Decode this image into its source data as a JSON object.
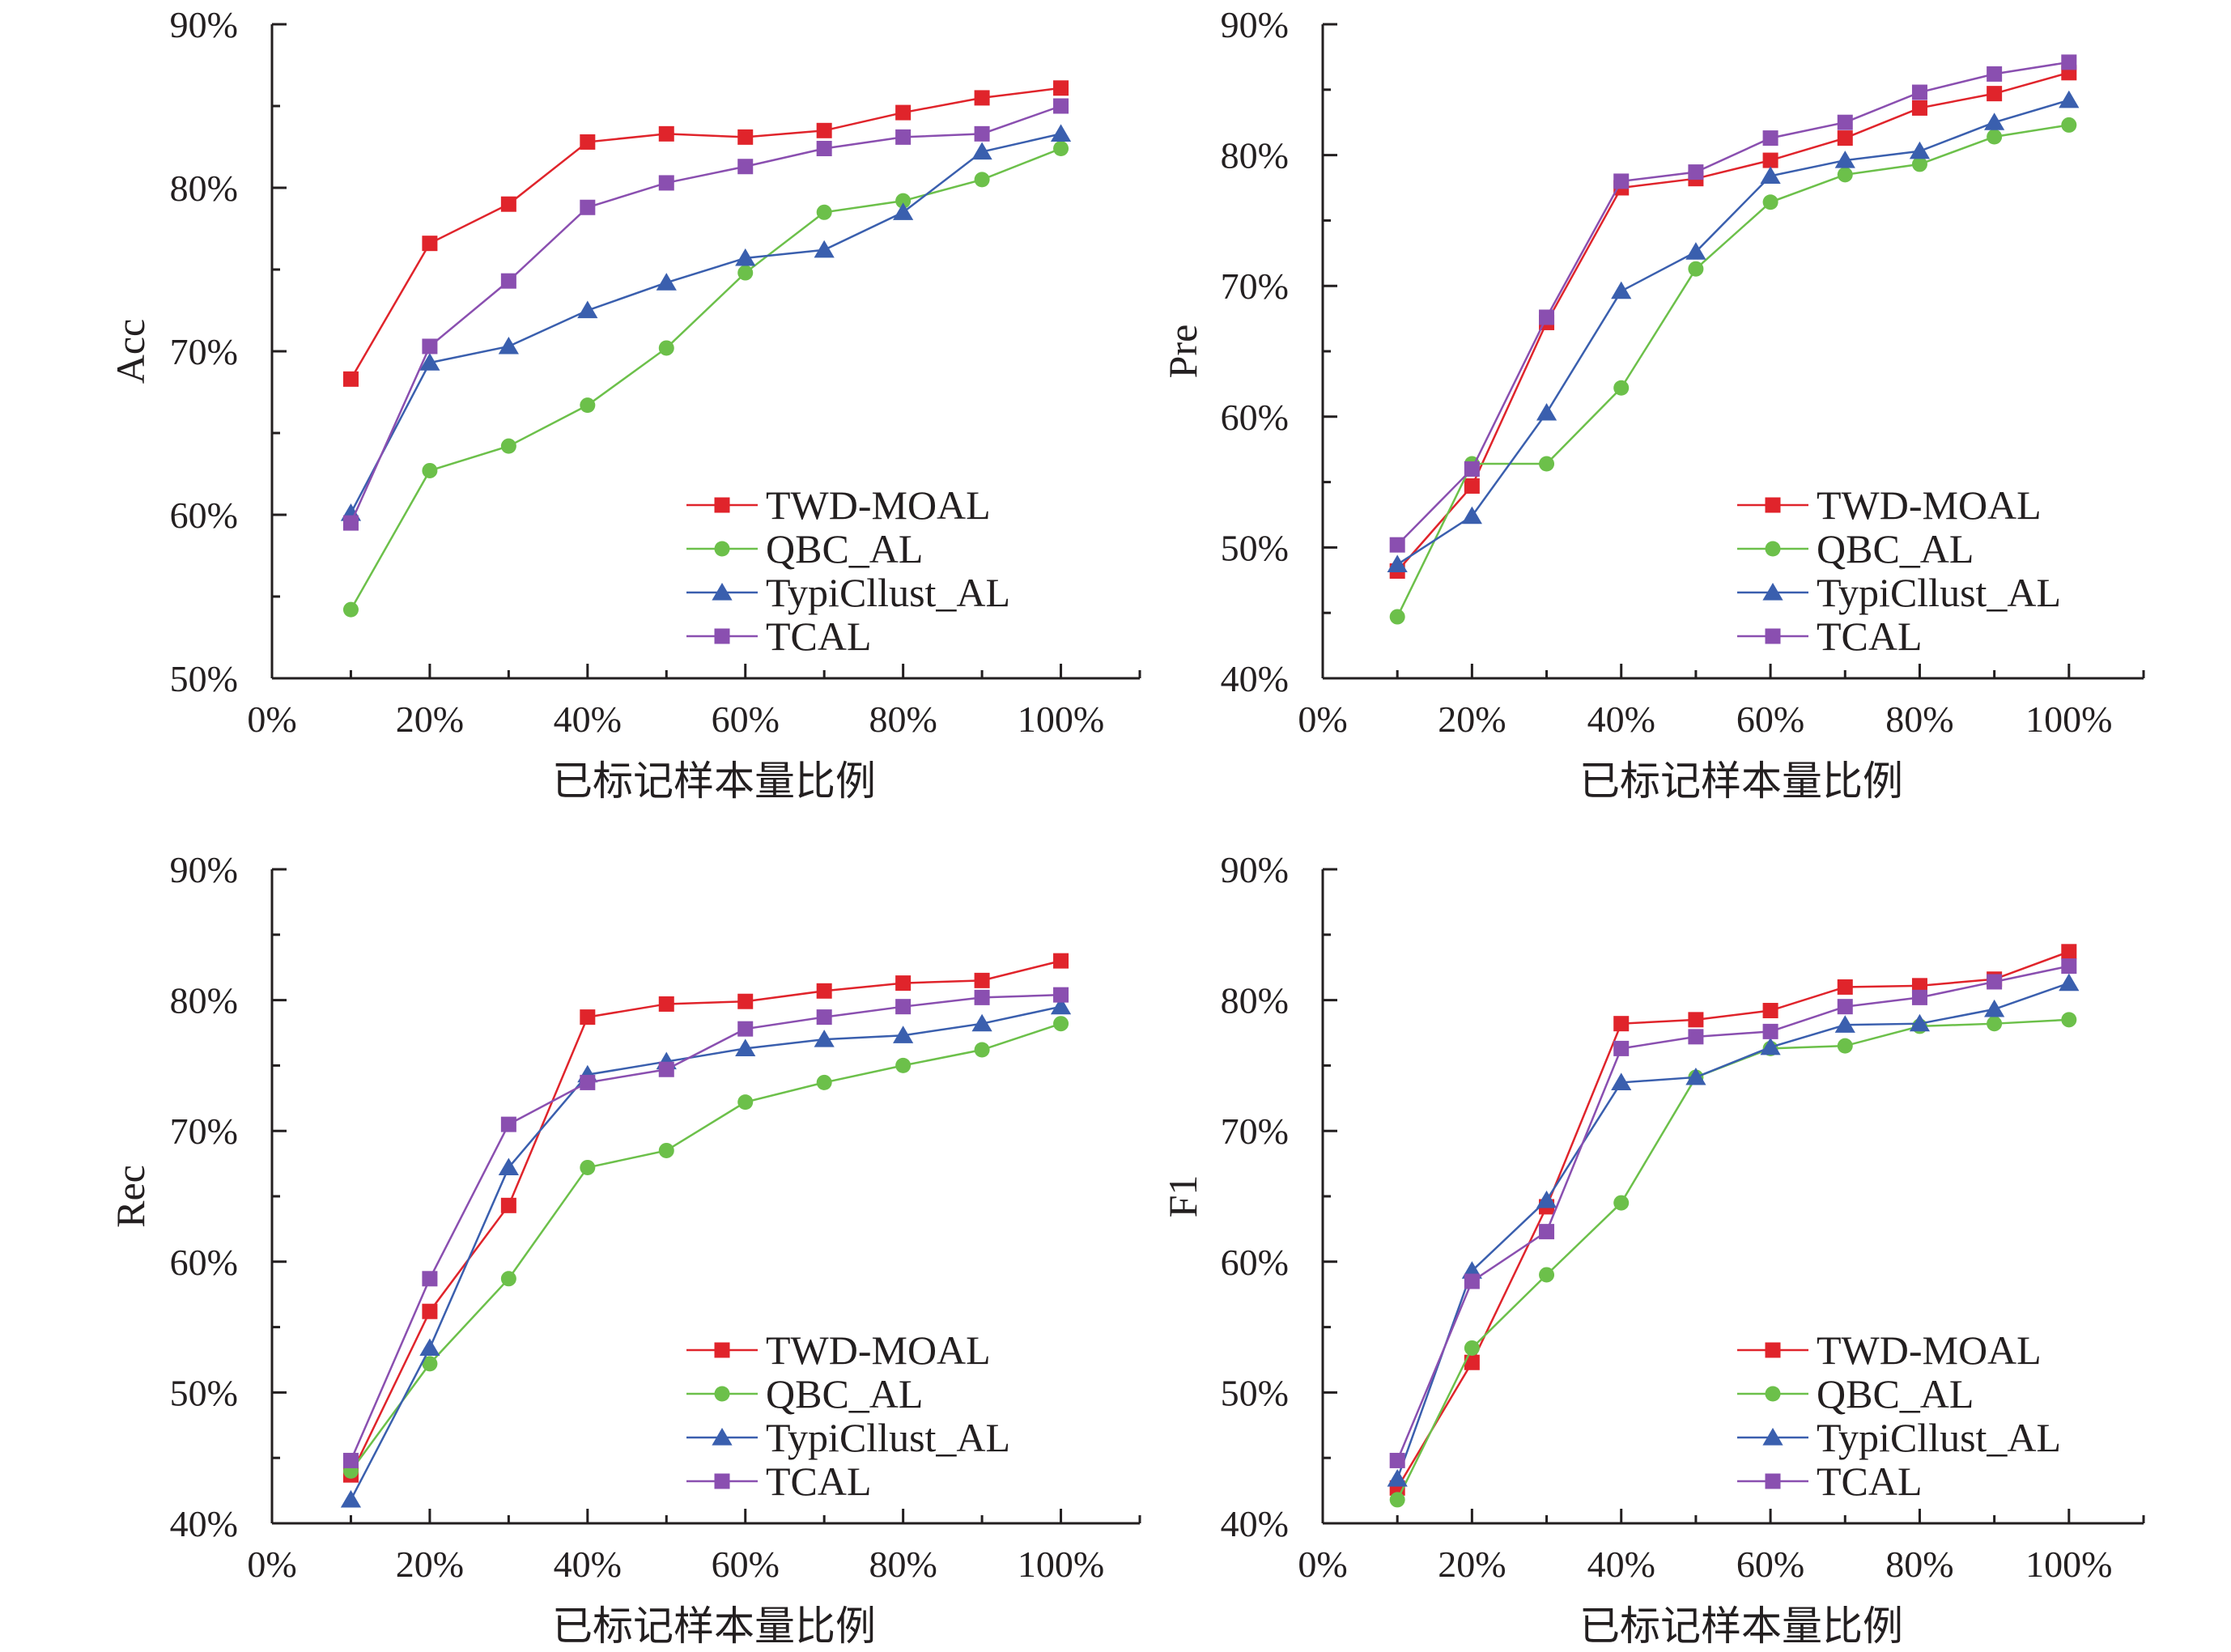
{
  "chart_data": [
    {
      "type": "line",
      "xlabel": "已标记样本量比例",
      "ylabel": "Acc",
      "x": [
        10,
        20,
        30,
        40,
        50,
        60,
        70,
        80,
        90,
        100
      ],
      "xlim": [
        0,
        110
      ],
      "ylim": [
        50,
        90
      ],
      "xticks": [
        "0%",
        "20%",
        "40%",
        "60%",
        "80%",
        "100%"
      ],
      "yticks": [
        "50%",
        "60%",
        "70%",
        "80%",
        "90%"
      ],
      "legend_position": "bottom-right",
      "series": [
        {
          "name": "TWD-MOAL",
          "color": "#e0242b",
          "marker": "square",
          "values": [
            68.3,
            76.6,
            79.0,
            82.8,
            83.3,
            83.1,
            83.5,
            84.6,
            85.5,
            86.1
          ]
        },
        {
          "name": "QBC_AL",
          "color": "#6cc04a",
          "marker": "circle",
          "values": [
            54.2,
            62.7,
            64.2,
            66.7,
            70.2,
            74.8,
            78.5,
            79.2,
            80.5,
            82.4
          ]
        },
        {
          "name": "TypiCllust_AL",
          "color": "#3a5fae",
          "marker": "triangle",
          "values": [
            60.1,
            69.3,
            70.3,
            72.5,
            74.2,
            75.7,
            76.2,
            78.5,
            82.2,
            83.3
          ]
        },
        {
          "name": "TCAL",
          "color": "#8a4fb0",
          "marker": "square",
          "values": [
            59.5,
            70.3,
            74.3,
            78.8,
            80.3,
            81.3,
            82.4,
            83.1,
            83.3,
            85.0
          ]
        }
      ]
    },
    {
      "type": "line",
      "xlabel": "已标记样本量比例",
      "ylabel": "Pre",
      "x": [
        10,
        20,
        30,
        40,
        50,
        60,
        70,
        80,
        90,
        100
      ],
      "xlim": [
        0,
        110
      ],
      "ylim": [
        40,
        90
      ],
      "xticks": [
        "0%",
        "20%",
        "40%",
        "60%",
        "80%",
        "100%"
      ],
      "yticks": [
        "40%",
        "50%",
        "60%",
        "70%",
        "80%",
        "90%"
      ],
      "legend_position": "bottom-right",
      "series": [
        {
          "name": "TWD-MOAL",
          "color": "#e0242b",
          "marker": "square",
          "values": [
            48.2,
            54.7,
            67.2,
            77.5,
            78.2,
            79.6,
            81.3,
            83.6,
            84.7,
            86.3
          ]
        },
        {
          "name": "QBC_AL",
          "color": "#6cc04a",
          "marker": "circle",
          "values": [
            44.7,
            56.4,
            56.4,
            62.2,
            71.3,
            76.4,
            78.5,
            79.3,
            81.4,
            82.3
          ]
        },
        {
          "name": "TypiCllust_AL",
          "color": "#3a5fae",
          "marker": "triangle",
          "values": [
            48.7,
            52.4,
            60.3,
            69.6,
            72.6,
            78.4,
            79.6,
            80.3,
            82.5,
            84.2
          ]
        },
        {
          "name": "TCAL",
          "color": "#8a4fb0",
          "marker": "square",
          "values": [
            50.2,
            56.0,
            67.6,
            78.0,
            78.7,
            81.3,
            82.5,
            84.8,
            86.2,
            87.1
          ]
        }
      ]
    },
    {
      "type": "line",
      "xlabel": "已标记样本量比例",
      "ylabel": "Rec",
      "x": [
        10,
        20,
        30,
        40,
        50,
        60,
        70,
        80,
        90,
        100
      ],
      "xlim": [
        0,
        110
      ],
      "ylim": [
        40,
        90
      ],
      "xticks": [
        "0%",
        "20%",
        "40%",
        "60%",
        "80%",
        "100%"
      ],
      "yticks": [
        "40%",
        "50%",
        "60%",
        "70%",
        "80%",
        "90%"
      ],
      "legend_position": "bottom-right",
      "series": [
        {
          "name": "TWD-MOAL",
          "color": "#e0242b",
          "marker": "square",
          "values": [
            43.7,
            56.2,
            64.3,
            78.7,
            79.7,
            79.9,
            80.7,
            81.3,
            81.5,
            83.0
          ]
        },
        {
          "name": "QBC_AL",
          "color": "#6cc04a",
          "marker": "circle",
          "values": [
            44.0,
            52.2,
            58.7,
            67.2,
            68.5,
            72.2,
            73.7,
            75.0,
            76.2,
            78.2
          ]
        },
        {
          "name": "TypiCllust_AL",
          "color": "#3a5fae",
          "marker": "triangle",
          "values": [
            41.8,
            53.4,
            67.2,
            74.3,
            75.3,
            76.3,
            77.0,
            77.3,
            78.2,
            79.5
          ]
        },
        {
          "name": "TCAL",
          "color": "#8a4fb0",
          "marker": "square",
          "values": [
            44.8,
            58.7,
            70.5,
            73.7,
            74.7,
            77.8,
            78.7,
            79.5,
            80.2,
            80.4
          ]
        }
      ]
    },
    {
      "type": "line",
      "xlabel": "已标记样本量比例",
      "ylabel": "F1",
      "x": [
        10,
        20,
        30,
        40,
        50,
        60,
        70,
        80,
        90,
        100
      ],
      "xlim": [
        0,
        110
      ],
      "ylim": [
        40,
        90
      ],
      "xticks": [
        "0%",
        "20%",
        "40%",
        "60%",
        "80%",
        "100%"
      ],
      "yticks": [
        "40%",
        "50%",
        "60%",
        "70%",
        "80%",
        "90%"
      ],
      "legend_position": "bottom-right",
      "series": [
        {
          "name": "TWD-MOAL",
          "color": "#e0242b",
          "marker": "square",
          "values": [
            42.7,
            52.3,
            64.2,
            78.2,
            78.5,
            79.2,
            81.0,
            81.1,
            81.6,
            83.7
          ]
        },
        {
          "name": "QBC_AL",
          "color": "#6cc04a",
          "marker": "circle",
          "values": [
            41.8,
            53.4,
            59.0,
            64.5,
            74.1,
            76.3,
            76.5,
            78.0,
            78.2,
            78.5
          ]
        },
        {
          "name": "TypiCllust_AL",
          "color": "#3a5fae",
          "marker": "triangle",
          "values": [
            43.4,
            59.3,
            64.7,
            73.7,
            74.1,
            76.4,
            78.1,
            78.2,
            79.3,
            81.3
          ]
        },
        {
          "name": "TCAL",
          "color": "#8a4fb0",
          "marker": "square",
          "values": [
            44.8,
            58.5,
            62.3,
            76.3,
            77.2,
            77.6,
            79.5,
            80.2,
            81.4,
            82.6
          ]
        }
      ]
    }
  ]
}
